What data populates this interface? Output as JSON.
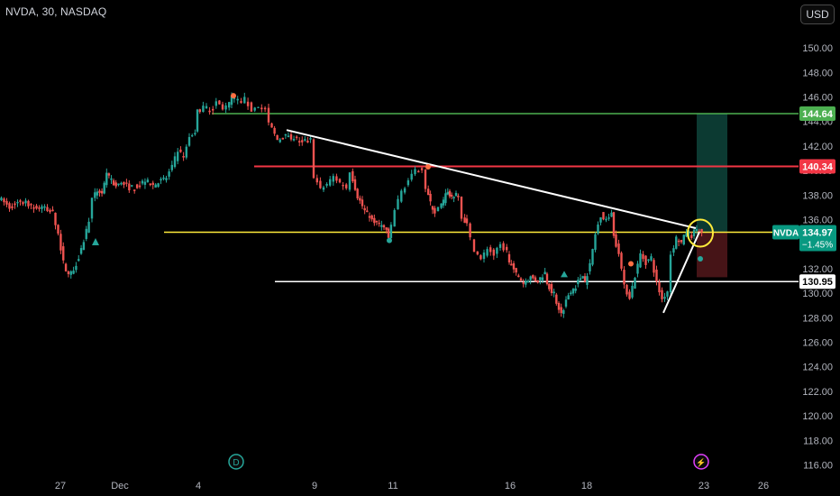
{
  "header": {
    "symbol_title": "NVDA, 30, NASDAQ",
    "currency_button": "USD"
  },
  "chart_data": {
    "type": "candlestick",
    "title": "NVDA, 30, NASDAQ",
    "symbol": "NVDA",
    "interval": "30",
    "exchange": "NASDAQ",
    "currency": "USD",
    "y_ticks": [
      150.0,
      148.0,
      146.0,
      144.0,
      142.0,
      140.0,
      138.0,
      136.0,
      134.0,
      132.0,
      130.0,
      128.0,
      126.0,
      124.0,
      122.0,
      120.0,
      118.0,
      116.0
    ],
    "ylim": [
      115.6,
      151.4
    ],
    "x_ticks": [
      "27",
      "Dec",
      "4",
      "9",
      "11",
      "16",
      "18",
      "23",
      "26"
    ],
    "grid": false,
    "colors": {
      "up": "#26a69a",
      "down": "#ef5350",
      "background": "#000000"
    },
    "last_price": {
      "label": "NVDA",
      "value": "134.97",
      "change": "−1.45%",
      "color": "#089981"
    },
    "price_path": [
      [
        "Nov 26",
        137.8
      ],
      [
        "Nov 26",
        137.0
      ],
      [
        "Nov 26",
        137.5
      ],
      [
        "Nov 26",
        137.2
      ],
      [
        "Nov 26",
        136.9
      ],
      [
        "Nov 26",
        136.6
      ],
      [
        "Nov 27",
        134.8
      ],
      [
        "Nov 27",
        132.5
      ],
      [
        "Nov 27",
        131.5
      ],
      [
        "Nov 27",
        131.9
      ],
      [
        "Nov 27",
        133.0
      ],
      [
        "Nov 27",
        134.3
      ],
      [
        "Nov 27",
        136.0
      ],
      [
        "Nov 29",
        137.6
      ],
      [
        "Nov 29",
        138.4
      ],
      [
        "Nov 29",
        138.2
      ],
      [
        "Nov 29",
        139.6
      ],
      [
        "Nov 29",
        139.2
      ],
      [
        "Nov 29",
        138.7
      ],
      [
        "Dec 2",
        139.0
      ],
      [
        "Dec 2",
        138.6
      ],
      [
        "Dec 2",
        138.7
      ],
      [
        "Dec 2",
        139.2
      ],
      [
        "Dec 2",
        138.8
      ],
      [
        "Dec 2",
        139.1
      ],
      [
        "Dec 3",
        139.4
      ],
      [
        "Dec 3",
        140.3
      ],
      [
        "Dec 3",
        141.6
      ],
      [
        "Dec 3",
        141.0
      ],
      [
        "Dec 3",
        142.7
      ],
      [
        "Dec 3",
        143.1
      ],
      [
        "Dec 4",
        144.8
      ],
      [
        "Dec 4",
        145.2
      ],
      [
        "Dec 4",
        144.9
      ],
      [
        "Dec 4",
        145.6
      ],
      [
        "Dec 4",
        145.1
      ],
      [
        "Dec 4",
        145.4
      ],
      [
        "Dec 5",
        146.0
      ],
      [
        "Dec 5",
        145.5
      ],
      [
        "Dec 5",
        145.8
      ],
      [
        "Dec 5",
        144.9
      ],
      [
        "Dec 5",
        145.3
      ],
      [
        "Dec 5",
        144.9
      ],
      [
        "Dec 6",
        143.8
      ],
      [
        "Dec 6",
        142.5
      ],
      [
        "Dec 6",
        142.8
      ],
      [
        "Dec 6",
        142.6
      ],
      [
        "Dec 6",
        142.3
      ],
      [
        "Dec 6",
        142.4
      ],
      [
        "Dec 9",
        139.6
      ],
      [
        "Dec 9",
        138.4
      ],
      [
        "Dec 9",
        138.9
      ],
      [
        "Dec 9",
        139.5
      ],
      [
        "Dec 9",
        139.0
      ],
      [
        "Dec 9",
        138.6
      ],
      [
        "Dec 10",
        140.0
      ],
      [
        "Dec 10",
        137.9
      ],
      [
        "Dec 10",
        136.7
      ],
      [
        "Dec 10",
        136.0
      ],
      [
        "Dec 10",
        135.6
      ],
      [
        "Dec 10",
        135.2
      ],
      [
        "Dec 11",
        134.3
      ],
      [
        "Dec 11",
        136.8
      ],
      [
        "Dec 11",
        138.3
      ],
      [
        "Dec 11",
        139.2
      ],
      [
        "Dec 11",
        139.9
      ],
      [
        "Dec 11",
        140.2
      ],
      [
        "Dec 12",
        138.6
      ],
      [
        "Dec 12",
        137.3
      ],
      [
        "Dec 12",
        136.6
      ],
      [
        "Dec 12",
        136.9
      ],
      [
        "Dec 12",
        137.5
      ],
      [
        "Dec 12",
        138.4
      ],
      [
        "Dec 13",
        137.8
      ],
      [
        "Dec 13",
        138.0
      ],
      [
        "Dec 13",
        137.9
      ],
      [
        "Dec 13",
        136.2
      ],
      [
        "Dec 13",
        135.6
      ],
      [
        "Dec 13",
        134.4
      ],
      [
        "Dec 16",
        133.6
      ],
      [
        "Dec 16",
        132.7
      ],
      [
        "Dec 16",
        133.7
      ],
      [
        "Dec 16",
        133.1
      ],
      [
        "Dec 16",
        133.9
      ],
      [
        "Dec 16",
        133.4
      ],
      [
        "Dec 17",
        132.6
      ],
      [
        "Dec 17",
        131.5
      ],
      [
        "Dec 17",
        130.9
      ],
      [
        "Dec 17",
        131.3
      ],
      [
        "Dec 17",
        131.0
      ],
      [
        "Dec 17",
        131.7
      ],
      [
        "Dec 18",
        130.9
      ],
      [
        "Dec 18",
        129.8
      ],
      [
        "Dec 18",
        128.3
      ],
      [
        "Dec 18",
        129.9
      ],
      [
        "Dec 18",
        130.6
      ],
      [
        "Dec 18",
        131.6
      ],
      [
        "Dec 19",
        130.9
      ],
      [
        "Dec 19",
        132.3
      ],
      [
        "Dec 19",
        134.8
      ],
      [
        "Dec 19",
        136.4
      ],
      [
        "Dec 19",
        135.9
      ],
      [
        "Dec 19",
        136.7
      ],
      [
        "Dec 20",
        134.6
      ],
      [
        "Dec 20",
        133.4
      ],
      [
        "Dec 20",
        130.5
      ],
      [
        "Dec 20",
        129.7
      ],
      [
        "Dec 20",
        131.4
      ],
      [
        "Dec 20",
        133.2
      ],
      [
        "Dec 20",
        132.5
      ],
      [
        "Dec 20",
        132.9
      ],
      [
        "Dec 20",
        130.8
      ],
      [
        "Dec 20",
        129.5
      ],
      [
        "Dec 20",
        130.2
      ],
      [
        "Dec 23",
        133.2
      ],
      [
        "Dec 23",
        134.5
      ],
      [
        "Dec 23",
        134.1
      ],
      [
        "Dec 23",
        135.0
      ],
      [
        "Dec 23",
        134.7
      ],
      [
        "Dec 23",
        135.3
      ],
      [
        "Dec 23",
        134.97
      ]
    ],
    "horizontal_levels": [
      {
        "price": 144.64,
        "label": "144.64",
        "color": "#4caf50"
      },
      {
        "price": 140.34,
        "label": "140.34",
        "color": "#f23645"
      },
      {
        "price": 134.97,
        "label": "",
        "color": "#ffeb3b"
      },
      {
        "price": 130.95,
        "label": "130.95",
        "color": "#ffffff"
      }
    ],
    "trendlines": [
      {
        "from": [
          "Dec 6",
          143.3
        ],
        "to": [
          "Dec 23",
          135.3
        ],
        "color": "#ffffff"
      },
      {
        "from": [
          "Dec 20",
          128.4
        ],
        "to": [
          "Dec 23",
          135.0
        ],
        "color": "#ffffff"
      }
    ],
    "position_tool": {
      "entry": 134.97,
      "target": 144.64,
      "stop": 131.3,
      "profit_color": "#0d3d35",
      "loss_color": "#4a1518"
    },
    "markers": {
      "dividend": "D",
      "earnings": "⚡"
    }
  }
}
